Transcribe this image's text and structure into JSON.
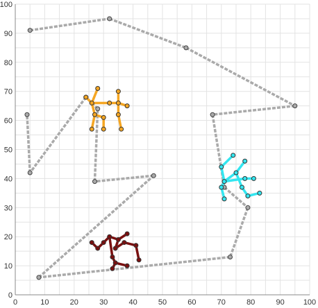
{
  "chart_data": {
    "type": "scatter",
    "title": "",
    "xlabel": "",
    "ylabel": "",
    "xlim": [
      0,
      100
    ],
    "ylim": [
      0,
      100
    ],
    "grid": true,
    "x_ticks": [
      "0",
      "10",
      "20",
      "30",
      "40",
      "50",
      "60",
      "70",
      "80",
      "90",
      "100"
    ],
    "y_ticks": [
      "0",
      "10",
      "20",
      "30",
      "40",
      "50",
      "60",
      "70",
      "80",
      "90",
      "100"
    ],
    "path": {
      "color": "#aaaaaa",
      "marker_color": "#aaaaaa",
      "style": "dashed",
      "points": [
        [
          5,
          91
        ],
        [
          32,
          95
        ],
        [
          58,
          85
        ],
        [
          95,
          65
        ],
        [
          67,
          62
        ],
        [
          71,
          37
        ],
        [
          79,
          30
        ],
        [
          73,
          13
        ],
        [
          8,
          6
        ],
        [
          47,
          41
        ],
        [
          27,
          39
        ],
        [
          28,
          64
        ],
        [
          24,
          68
        ],
        [
          5,
          42
        ],
        [
          4,
          62
        ]
      ]
    },
    "figures": [
      {
        "color": "#f5a623",
        "marker_color": "#f5a623",
        "points": [
          [
            24,
            68
          ],
          [
            26,
            66
          ],
          [
            28,
            71
          ],
          [
            27,
            62
          ],
          [
            26,
            57
          ],
          [
            30,
            61
          ],
          [
            30,
            57
          ],
          [
            32,
            66
          ],
          [
            35,
            70
          ],
          [
            35,
            66
          ],
          [
            38,
            65
          ],
          [
            35,
            62
          ],
          [
            36,
            57
          ]
        ],
        "edges": [
          [
            0,
            1
          ],
          [
            1,
            2
          ],
          [
            1,
            3
          ],
          [
            3,
            4
          ],
          [
            3,
            5
          ],
          [
            5,
            6
          ],
          [
            1,
            7
          ],
          [
            7,
            9
          ],
          [
            8,
            9
          ],
          [
            9,
            10
          ],
          [
            9,
            11
          ],
          [
            11,
            12
          ]
        ]
      },
      {
        "color": "#33e6f0",
        "marker_color": "#33e6f0",
        "points": [
          [
            74,
            48
          ],
          [
            70,
            44
          ],
          [
            75,
            42
          ],
          [
            78,
            46
          ],
          [
            71,
            39
          ],
          [
            78,
            40
          ],
          [
            81,
            40
          ],
          [
            70,
            37
          ],
          [
            77,
            37
          ],
          [
            71,
            33
          ],
          [
            79,
            34
          ],
          [
            83,
            35
          ]
        ],
        "edges": [
          [
            0,
            1
          ],
          [
            1,
            4
          ],
          [
            2,
            3
          ],
          [
            2,
            4
          ],
          [
            4,
            5
          ],
          [
            5,
            6
          ],
          [
            4,
            7
          ],
          [
            2,
            8
          ],
          [
            7,
            9
          ],
          [
            8,
            10
          ],
          [
            10,
            11
          ]
        ]
      },
      {
        "color": "#7a1010",
        "marker_color": "#7a1010",
        "points": [
          [
            26,
            18
          ],
          [
            28,
            16
          ],
          [
            30,
            18
          ],
          [
            32,
            20
          ],
          [
            35,
            19
          ],
          [
            38,
            21
          ],
          [
            34,
            16
          ],
          [
            37,
            18
          ],
          [
            41,
            17
          ],
          [
            33,
            13
          ],
          [
            34,
            11
          ],
          [
            38,
            10
          ],
          [
            33,
            9
          ],
          [
            42,
            12
          ]
        ],
        "edges": [
          [
            0,
            1
          ],
          [
            1,
            2
          ],
          [
            2,
            3
          ],
          [
            3,
            4
          ],
          [
            4,
            5
          ],
          [
            4,
            6
          ],
          [
            6,
            7
          ],
          [
            7,
            8
          ],
          [
            8,
            13
          ],
          [
            3,
            9
          ],
          [
            9,
            10
          ],
          [
            10,
            11
          ],
          [
            10,
            12
          ]
        ]
      }
    ]
  }
}
